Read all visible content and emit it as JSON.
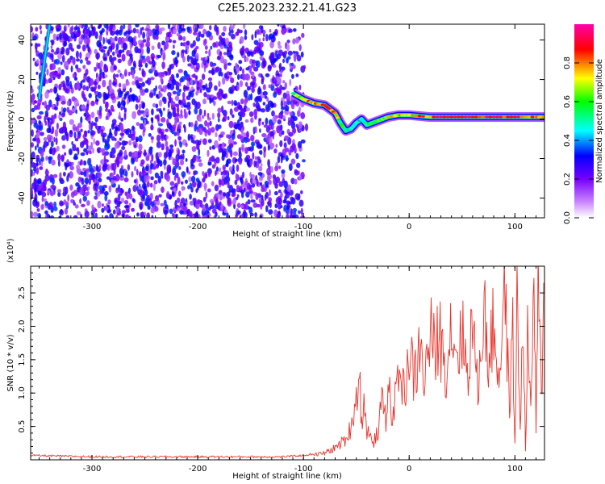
{
  "title": "C2E5.2023.232.21.41.G23",
  "chart_data": [
    {
      "type": "heatmap",
      "xlabel": "Height of straight line (km)",
      "ylabel": "Frequency (Hz)",
      "xlim": [
        -358,
        128
      ],
      "ylim": [
        -50,
        48
      ],
      "xticks": [
        -300,
        -200,
        -100,
        0,
        100
      ],
      "yticks": [
        -40,
        -20,
        0,
        20,
        40
      ],
      "colorbar": {
        "label": "Normalized spectral amplitude",
        "range": [
          0,
          1
        ],
        "ticks": [
          "0.0",
          "0.2",
          "0.4",
          "0.6",
          "0.8"
        ],
        "colors": [
          "#ffffff",
          "#cc88ff",
          "#7700ff",
          "#0000ff",
          "#00ffff",
          "#00ff00",
          "#ffff00",
          "#ff0000",
          "#ff00aa"
        ]
      },
      "noise_region": {
        "x": [
          -358,
          -95
        ],
        "amplitude": [
          0.1,
          0.35
        ]
      },
      "trace": {
        "x": [
          -110,
          -100,
          -90,
          -80,
          -70,
          -65,
          -60,
          -55,
          -50,
          -45,
          -40,
          -30,
          -20,
          -10,
          0,
          20,
          40,
          60,
          80,
          100,
          120,
          128
        ],
        "y": [
          13,
          10,
          8,
          7,
          3,
          -2,
          -6,
          -5,
          -2,
          0,
          -3,
          -1,
          1,
          2,
          2,
          1,
          1,
          1,
          1,
          1,
          1,
          1
        ],
        "amplitude": [
          0.6,
          0.75,
          0.8,
          0.85,
          0.75,
          0.55,
          0.5,
          0.5,
          0.45,
          0.45,
          0.5,
          0.6,
          0.7,
          0.75,
          0.8,
          0.85,
          0.9,
          0.9,
          0.9,
          0.85,
          0.85,
          0.8
        ]
      },
      "left_streak": {
        "x": [
          -350,
          -340
        ],
        "y": [
          10,
          48
        ]
      }
    },
    {
      "type": "line",
      "xlabel": "Height of straight line (km)",
      "ylabel": "SNR (10 * v/v)",
      "scale_label": "(x10⁴)",
      "xlim": [
        -358,
        128
      ],
      "ylim": [
        0,
        2.9
      ],
      "xticks": [
        -300,
        -200,
        -100,
        0,
        100
      ],
      "yticks": [
        "0.5",
        "1.0",
        "1.5",
        "2.0",
        "2.5"
      ],
      "series": [
        {
          "color": "#e8332a",
          "x": [
            -358,
            -300,
            -200,
            -120,
            -100,
            -80,
            -70,
            -60,
            -55,
            -50,
            -47,
            -45,
            -42,
            -40,
            -38,
            -35,
            -30,
            -25,
            -22,
            -20,
            -15,
            -10,
            -5,
            0,
            5,
            10,
            15,
            20,
            25,
            28,
            30,
            35,
            40,
            45,
            50,
            55,
            60,
            65,
            70,
            75,
            80,
            85,
            90,
            95,
            98,
            100,
            102,
            105,
            108,
            110,
            112,
            115,
            118,
            120,
            122,
            125,
            128
          ],
          "y": [
            0.05,
            0.03,
            0.03,
            0.03,
            0.05,
            0.1,
            0.18,
            0.3,
            0.5,
            0.95,
            1.25,
            0.6,
            0.9,
            0.3,
            0.5,
            0.2,
            0.4,
            0.9,
            0.6,
            1.15,
            0.6,
            1.4,
            1.0,
            1.6,
            1.2,
            1.65,
            1.2,
            1.95,
            1.5,
            2.0,
            1.75,
            1.4,
            2.05,
            1.6,
            1.9,
            1.3,
            2.1,
            0.95,
            2.35,
            1.5,
            2.0,
            1.2,
            2.6,
            0.8,
            1.9,
            0.2,
            2.3,
            0.5,
            2.2,
            0.1,
            2.0,
            0.6,
            2.9,
            0.4,
            2.5,
            1.0,
            2.65
          ]
        }
      ]
    }
  ]
}
